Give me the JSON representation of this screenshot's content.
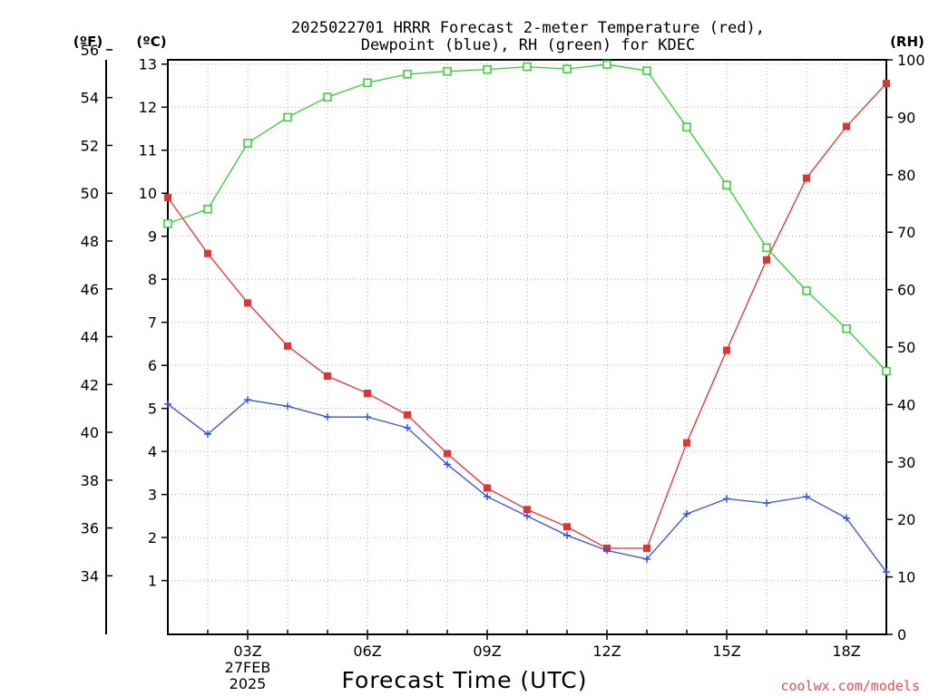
{
  "chart_data": {
    "type": "line",
    "title_line1": "2025022701 HRRR Forecast 2-meter Temperature (red),",
    "title_line2": "Dewpoint (blue), RH (green) for KDEC",
    "xlabel": "Forecast Time (UTC)",
    "unit_f": "(ºF)",
    "unit_c": "(ºC)",
    "unit_rh": "(RH)",
    "credit": "coolwx.com/models",
    "x_hours": [
      1,
      2,
      3,
      4,
      5,
      6,
      7,
      8,
      9,
      10,
      11,
      12,
      13,
      14,
      15,
      16,
      17,
      18,
      19
    ],
    "x_range": [
      1,
      19
    ],
    "x_ticks": [
      {
        "hour": 3,
        "label": "03Z",
        "sub1": "27FEB",
        "sub2": "2025"
      },
      {
        "hour": 6,
        "label": "06Z"
      },
      {
        "hour": 9,
        "label": "09Z"
      },
      {
        "hour": 12,
        "label": "12Z"
      },
      {
        "hour": 15,
        "label": "15Z"
      },
      {
        "hour": 18,
        "label": "18Z"
      }
    ],
    "celsius_ticks": [
      1,
      2,
      3,
      4,
      5,
      6,
      7,
      8,
      9,
      10,
      11,
      12,
      13
    ],
    "celsius_range": [
      -0.25,
      13.1
    ],
    "fahrenheit_ticks": [
      34,
      36,
      38,
      40,
      42,
      44,
      46,
      48,
      50,
      52,
      54,
      56
    ],
    "rh_ticks": [
      0,
      10,
      20,
      30,
      40,
      50,
      60,
      70,
      80,
      90,
      100
    ],
    "rh_range": [
      0,
      100
    ],
    "series": [
      {
        "name": "Temperature",
        "units": "C",
        "color": "#e83030",
        "marker": "filled-square",
        "values": [
          9.9,
          8.6,
          7.45,
          6.45,
          5.75,
          5.35,
          4.85,
          3.95,
          3.15,
          2.65,
          2.25,
          1.75,
          1.75,
          4.2,
          6.35,
          8.45,
          10.35,
          11.55,
          12.55
        ]
      },
      {
        "name": "Dewpoint",
        "units": "C",
        "color": "#3050e8",
        "marker": "plus",
        "values": [
          5.1,
          4.4,
          5.2,
          5.05,
          4.8,
          4.8,
          4.55,
          3.7,
          2.95,
          2.5,
          2.05,
          1.7,
          1.5,
          2.55,
          2.9,
          2.8,
          2.95,
          2.45,
          1.2
        ]
      },
      {
        "name": "RH",
        "units": "%",
        "color": "#30d030",
        "marker": "open-square",
        "values": [
          71.5,
          74,
          85.5,
          90,
          93.5,
          96,
          97.5,
          98,
          98.3,
          98.8,
          98.4,
          99.2,
          98.1,
          88.3,
          78.2,
          67.3,
          59.8,
          53.2,
          45.8
        ]
      }
    ]
  }
}
